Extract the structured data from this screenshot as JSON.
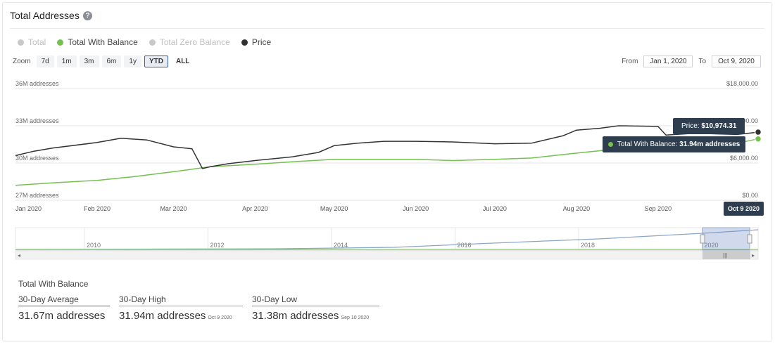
{
  "header": {
    "title": "Total Addresses",
    "help_icon": "question-icon"
  },
  "legend": [
    {
      "label": "Total",
      "color": "#c8c8c8",
      "active": false
    },
    {
      "label": "Total With Balance",
      "color": "#75c14f",
      "active": true
    },
    {
      "label": "Total Zero Balance",
      "color": "#c8c8c8",
      "active": false
    },
    {
      "label": "Price",
      "color": "#333333",
      "active": true
    }
  ],
  "zoom": {
    "label": "Zoom",
    "buttons": [
      "7d",
      "1m",
      "3m",
      "6m",
      "1y",
      "YTD",
      "ALL"
    ],
    "selected": "YTD"
  },
  "range": {
    "from_label": "From",
    "from_value": "Jan 1, 2020",
    "to_label": "To",
    "to_value": "Oct 9, 2020"
  },
  "chart_data": {
    "type": "line",
    "x_ticks": [
      "Jan 2020",
      "Feb 2020",
      "Mar 2020",
      "Apr 2020",
      "May 2020",
      "Jun 2020",
      "Jul 2020",
      "Aug 2020",
      "Sep 2020"
    ],
    "y_left": {
      "ticks": [
        "36M addresses",
        "33M addresses",
        "30M addresses",
        "27M addresses"
      ],
      "range": [
        27,
        36
      ],
      "unit": "M addresses"
    },
    "y_right": {
      "ticks": [
        "$18,000.00",
        "$12,000.00",
        "$6,000.00",
        "$0.00"
      ],
      "range": [
        0,
        18000
      ]
    },
    "series": [
      {
        "name": "Total With Balance",
        "color": "#75c14f",
        "axis": "left",
        "x": [
          "2020-01-01",
          "2020-01-15",
          "2020-02-01",
          "2020-02-15",
          "2020-03-01",
          "2020-03-15",
          "2020-04-01",
          "2020-04-15",
          "2020-05-01",
          "2020-05-15",
          "2020-06-01",
          "2020-06-15",
          "2020-07-01",
          "2020-07-15",
          "2020-08-01",
          "2020-08-15",
          "2020-09-01",
          "2020-09-15",
          "2020-10-01",
          "2020-10-09"
        ],
        "values": [
          28.2,
          28.4,
          28.6,
          28.9,
          29.3,
          29.7,
          29.9,
          30.1,
          30.3,
          30.3,
          30.3,
          30.2,
          30.3,
          30.4,
          30.8,
          31.1,
          31.2,
          31.3,
          31.6,
          31.94
        ]
      },
      {
        "name": "Price",
        "color": "#333333",
        "axis": "right",
        "x": [
          "2020-01-01",
          "2020-01-08",
          "2020-01-15",
          "2020-02-01",
          "2020-02-10",
          "2020-02-20",
          "2020-03-01",
          "2020-03-08",
          "2020-03-12",
          "2020-03-15",
          "2020-03-22",
          "2020-04-01",
          "2020-04-15",
          "2020-04-25",
          "2020-05-01",
          "2020-05-10",
          "2020-05-20",
          "2020-06-01",
          "2020-06-15",
          "2020-07-01",
          "2020-07-15",
          "2020-07-27",
          "2020-08-01",
          "2020-08-10",
          "2020-08-17",
          "2020-09-01",
          "2020-09-04",
          "2020-09-15",
          "2020-10-01",
          "2020-10-09"
        ],
        "values": [
          7200,
          7900,
          8400,
          9300,
          10000,
          9700,
          8600,
          8300,
          5100,
          5400,
          5900,
          6400,
          7000,
          7700,
          8800,
          9200,
          9500,
          9500,
          9400,
          9100,
          9200,
          10400,
          11300,
          11600,
          12000,
          11900,
          10500,
          10800,
          10600,
          10974.31
        ]
      }
    ],
    "tooltip": {
      "price_label": "Price:",
      "price_value": "$10,974.31",
      "balance_label": "Total With Balance:",
      "balance_value": "31.94m addresses",
      "date": "Oct 9 2020"
    }
  },
  "navigator": {
    "ticks": [
      "2010",
      "2012",
      "2014",
      "2016",
      "2018",
      "2020"
    ]
  },
  "stats": {
    "title": "Total With Balance",
    "avg": {
      "label": "30-Day Average",
      "value": "31.67m addresses",
      "color": "#3b6fb6"
    },
    "high": {
      "label": "30-Day High",
      "value": "31.94m addresses",
      "date": "Oct 9 2020",
      "color": "#75c14f"
    },
    "low": {
      "label": "30-Day Low",
      "value": "31.38m addresses",
      "date": "Sep 10 2020",
      "color": "#e36d3c"
    }
  }
}
